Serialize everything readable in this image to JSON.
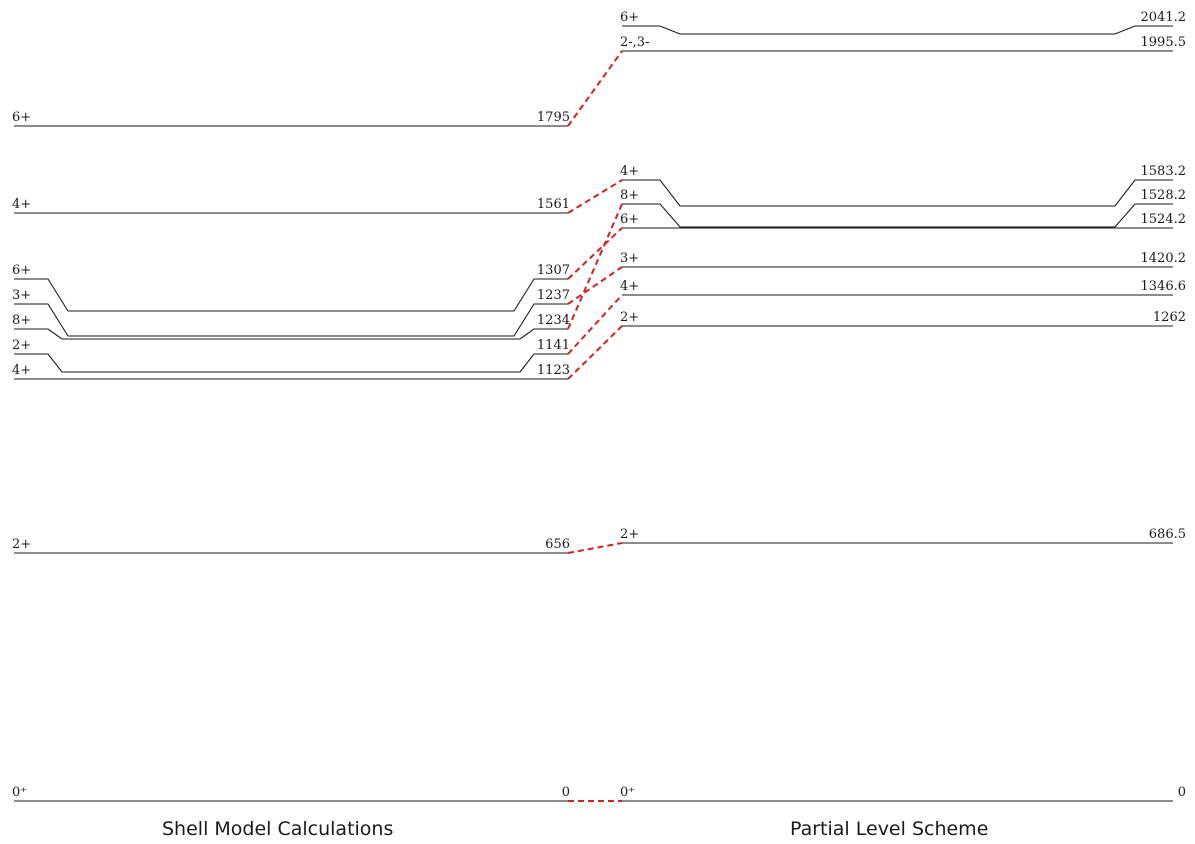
{
  "shell_model": {
    "title": "Shell Model Calculations",
    "levels": [
      {
        "spin": "0⁺",
        "energy": "0"
      },
      {
        "spin": "2+",
        "energy": "656"
      },
      {
        "spin": "4+",
        "energy": "1123"
      },
      {
        "spin": "2+",
        "energy": "1141"
      },
      {
        "spin": "8+",
        "energy": "1234"
      },
      {
        "spin": "3+",
        "energy": "1237"
      },
      {
        "spin": "6+",
        "energy": "1307"
      },
      {
        "spin": "4+",
        "energy": "1561"
      },
      {
        "spin": "6+",
        "energy": "1795"
      }
    ]
  },
  "level_scheme": {
    "title": "Partial Level Scheme",
    "levels": [
      {
        "spin": "0⁺",
        "energy": "0"
      },
      {
        "spin": "2+",
        "energy": "686.5"
      },
      {
        "spin": "2+",
        "energy": "1262"
      },
      {
        "spin": "4+",
        "energy": "1346.6"
      },
      {
        "spin": "3+",
        "energy": "1420.2"
      },
      {
        "spin": "6+",
        "energy": "1524.2"
      },
      {
        "spin": "8+",
        "energy": "1528.2"
      },
      {
        "spin": "4+",
        "energy": "1583.2"
      },
      {
        "spin": "2-,3-",
        "energy": "1995.5"
      },
      {
        "spin": "6+",
        "energy": "2041.2"
      }
    ]
  },
  "correspondences": [
    {
      "shell": "0",
      "scheme": "0"
    },
    {
      "shell": "656",
      "scheme": "686.5"
    },
    {
      "shell": "1123",
      "scheme": "1262"
    },
    {
      "shell": "1141",
      "scheme": "1346.6"
    },
    {
      "shell": "1234",
      "scheme": "1528.2"
    },
    {
      "shell": "1237",
      "scheme": "1420.2"
    },
    {
      "shell": "1307",
      "scheme": "1524.2"
    },
    {
      "shell": "1561",
      "scheme": "1583.2"
    },
    {
      "shell": "1795",
      "scheme": "1995.5"
    }
  ],
  "colors": {
    "level_line": "#1a1a1a",
    "connector": "#d42020"
  }
}
